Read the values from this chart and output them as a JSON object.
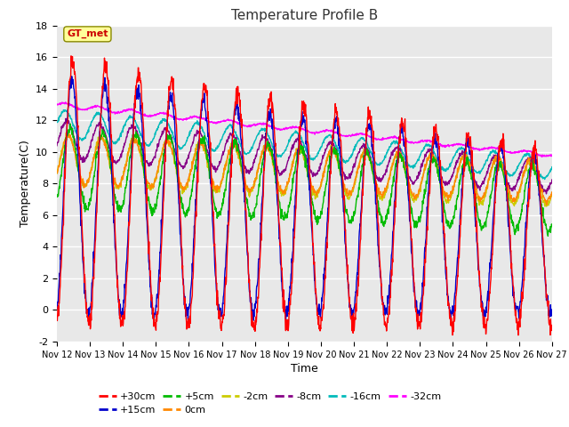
{
  "title": "Temperature Profile B",
  "xlabel": "Time",
  "ylabel": "Temperature(C)",
  "ylim": [
    -2,
    18
  ],
  "yticks": [
    -2,
    0,
    2,
    4,
    6,
    8,
    10,
    12,
    14,
    16,
    18
  ],
  "series_colors": {
    "+30cm": "#ff0000",
    "+15cm": "#0000cc",
    "+5cm": "#00bb00",
    "0cm": "#ff8800",
    "-2cm": "#cccc00",
    "-8cm": "#880088",
    "-16cm": "#00bbbb",
    "-32cm": "#ff00ff"
  },
  "annotation_text": "GT_met",
  "annotation_color": "#cc0000",
  "annotation_bg": "#ffff99",
  "annotation_border": "#888800",
  "plot_bg": "#e8e8e8",
  "n_days": 15,
  "start_day": 12
}
